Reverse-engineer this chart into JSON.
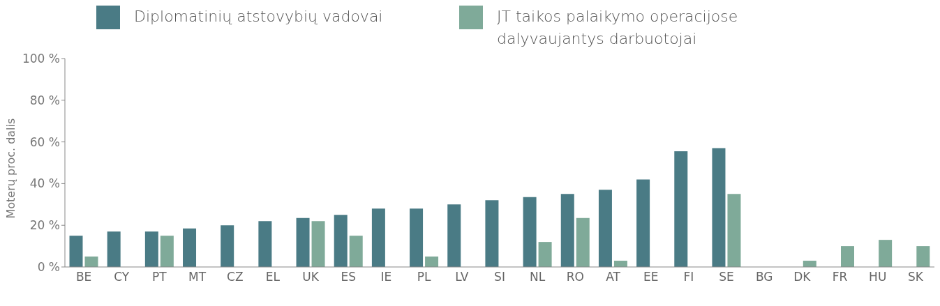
{
  "chart_data": {
    "type": "bar",
    "ylabel": "Moterų proc. dalis",
    "categories": [
      "BE",
      "CY",
      "PT",
      "MT",
      "CZ",
      "EL",
      "UK",
      "ES",
      "IE",
      "PL",
      "LV",
      "SI",
      "NL",
      "RO",
      "AT",
      "EE",
      "FI",
      "SE",
      "BG",
      "DK",
      "FR",
      "HU",
      "SK"
    ],
    "series": [
      {
        "name": "Diplomatinių atstovybių vadovai",
        "color": "#4a7b85",
        "values": [
          15,
          17,
          17,
          18.5,
          20,
          22,
          23.5,
          25,
          28,
          28,
          30,
          32,
          33.5,
          35,
          37,
          42,
          55.5,
          57,
          null,
          null,
          null,
          null,
          null
        ]
      },
      {
        "name": "JT taikos palaikymo operacijose dalyvaujantys darbuotojai",
        "color": "#7faa99",
        "values": [
          5,
          null,
          15,
          null,
          null,
          null,
          22,
          15,
          null,
          5,
          null,
          null,
          12,
          23.5,
          3,
          null,
          null,
          35,
          null,
          3,
          10,
          13,
          10
        ]
      }
    ],
    "ylim": [
      0,
      100
    ],
    "yticks": [
      {
        "value": 0,
        "label": "0 %"
      },
      {
        "value": 20,
        "label": "20 %"
      },
      {
        "value": 40,
        "label": "40 %"
      },
      {
        "value": 60,
        "label": "60 %"
      },
      {
        "value": 80,
        "label": "80 %"
      },
      {
        "value": 100,
        "label": "100 %"
      }
    ],
    "grid": false,
    "legend": "top"
  }
}
